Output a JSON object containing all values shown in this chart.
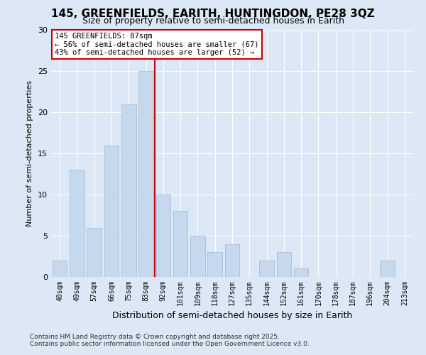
{
  "title1": "145, GREENFIELDS, EARITH, HUNTINGDON, PE28 3QZ",
  "title2": "Size of property relative to semi-detached houses in Earith",
  "xlabel": "Distribution of semi-detached houses by size in Earith",
  "ylabel": "Number of semi-detached properties",
  "categories": [
    "40sqm",
    "49sqm",
    "57sqm",
    "66sqm",
    "75sqm",
    "83sqm",
    "92sqm",
    "101sqm",
    "109sqm",
    "118sqm",
    "127sqm",
    "135sqm",
    "144sqm",
    "152sqm",
    "161sqm",
    "170sqm",
    "178sqm",
    "187sqm",
    "196sqm",
    "204sqm",
    "213sqm"
  ],
  "values": [
    2,
    13,
    6,
    16,
    21,
    25,
    10,
    8,
    5,
    3,
    4,
    0,
    2,
    3,
    1,
    0,
    0,
    0,
    0,
    2,
    0
  ],
  "bar_color": "#c5d8ed",
  "bar_edge_color": "#9bb8d4",
  "vline_color": "#cc0000",
  "vline_pos": 5.5,
  "annotation_title": "145 GREENFIELDS: 87sqm",
  "annotation_line1": "← 56% of semi-detached houses are smaller (67)",
  "annotation_line2": "43% of semi-detached houses are larger (52) →",
  "annotation_box_color": "#cc0000",
  "background_color": "#dce8f5",
  "grid_color": "#ffffff",
  "footer1": "Contains HM Land Registry data © Crown copyright and database right 2025.",
  "footer2": "Contains public sector information licensed under the Open Government Licence v3.0.",
  "ylim": [
    0,
    30
  ],
  "yticks": [
    0,
    5,
    10,
    15,
    20,
    25,
    30
  ],
  "title1_fontsize": 11,
  "title2_fontsize": 9
}
